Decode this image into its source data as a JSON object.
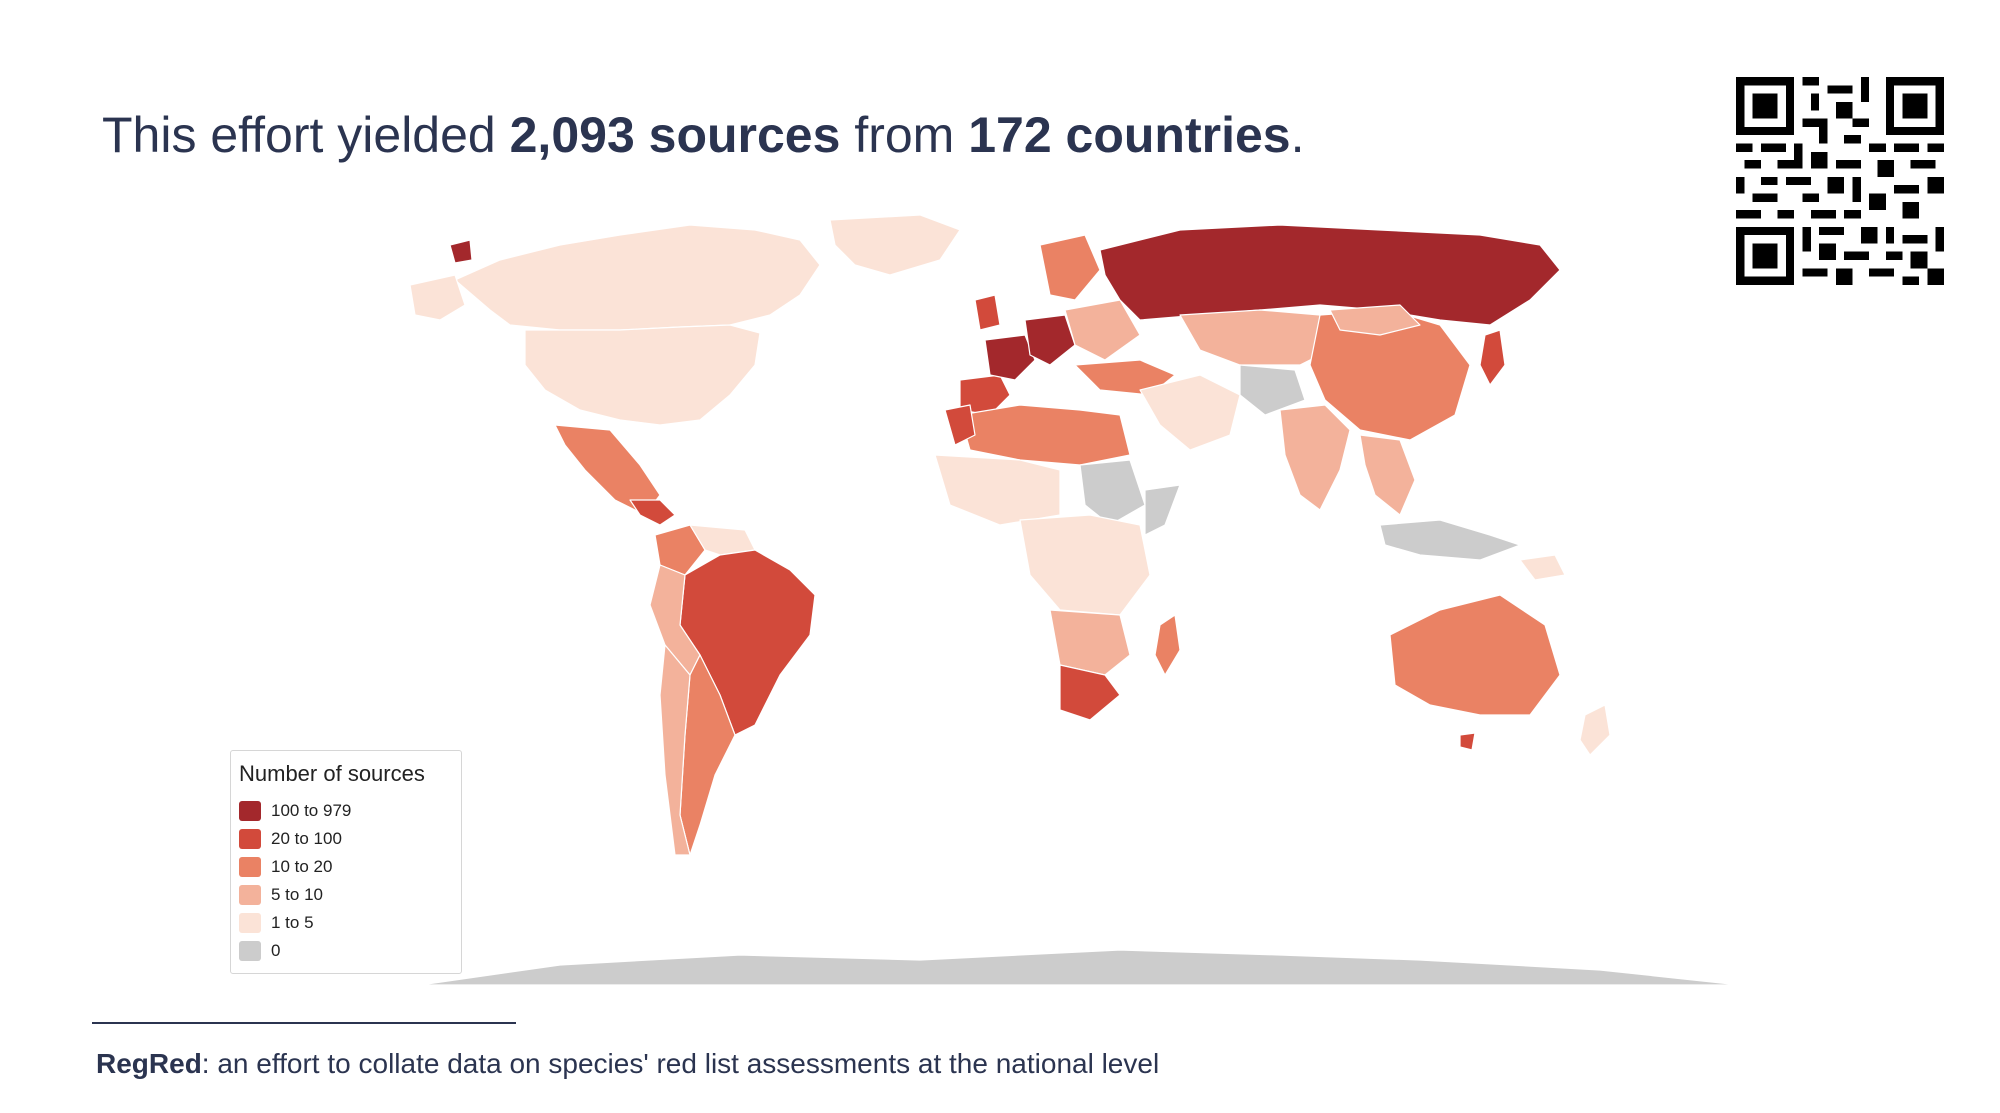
{
  "headline": {
    "prefix": "This effort yielded ",
    "sources": "2,093 sources",
    "middle": " from ",
    "countries": "172 countries",
    "suffix": "."
  },
  "legend": {
    "title": "Number of sources",
    "items": [
      {
        "label": "100 to 979",
        "color": "#a3282c"
      },
      {
        "label": "20 to 100",
        "color": "#d24a3b"
      },
      {
        "label": "10 to 20",
        "color": "#ea8264"
      },
      {
        "label": "5 to 10",
        "color": "#f3b29b"
      },
      {
        "label": "1 to 5",
        "color": "#fbe3d7"
      },
      {
        "label": "0",
        "color": "#cccccc"
      }
    ]
  },
  "footnote": {
    "bold": "RegRed",
    "text": ": an effort to collate data on species' red list assessments at the national level"
  },
  "qr_code": "qr-code"
}
